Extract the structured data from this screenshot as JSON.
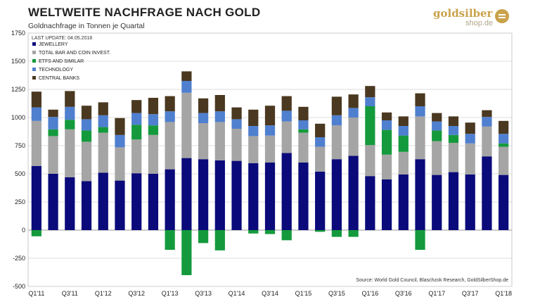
{
  "title": "WELTWEITE NACHFRAGE NACH GOLD",
  "subtitle": "Goldnachfrage in Tonnen je Quartal",
  "logo": {
    "main": "goldsilber",
    "sub": "shop.de"
  },
  "last_update": "LAST UPDATE: 04.05.2018",
  "source": "Source: World Gold Council, Blaschzok Research, GoldSilberShop.de",
  "colors": {
    "jewellery": "#0a0a7a",
    "bar_coin": "#a5a5a5",
    "etfs": "#149a3c",
    "technology": "#4f7fcf",
    "central_banks": "#4a3820"
  },
  "chart_data": {
    "type": "bar",
    "stacked": true,
    "categories": [
      "Q1'11",
      "Q2'11",
      "Q3'11",
      "Q4'11",
      "Q1'12",
      "Q2'12",
      "Q3'12",
      "Q4'12",
      "Q1'13",
      "Q2'13",
      "Q3'13",
      "Q4'13",
      "Q1'14",
      "Q2'14",
      "Q3'14",
      "Q4'14",
      "Q1'15",
      "Q2'15",
      "Q3'15",
      "Q4'15",
      "Q1'16",
      "Q2'16",
      "Q3'16",
      "Q4'16",
      "Q1'17",
      "Q2'17",
      "Q3'17",
      "Q4'17",
      "Q1'18"
    ],
    "tick_labels": [
      "Q1'11",
      "Q3'11",
      "Q1'12",
      "Q3'12",
      "Q1'13",
      "Q3'13",
      "Q1'14",
      "Q3'14",
      "Q1'15",
      "Q3'15",
      "Q1'16",
      "Q3'16",
      "Q1'17",
      "Q3'17",
      "Q1'18"
    ],
    "y_ticks": [
      "1750",
      "1500",
      "1250",
      "1000",
      "750",
      "500",
      "250",
      "0",
      "-250",
      "-500"
    ],
    "ylim": [
      -500,
      1750
    ],
    "grid": true,
    "legend_position": "top-left",
    "series": [
      {
        "name": "JEWELLERY",
        "color_key": "jewellery",
        "values": [
          570,
          500,
          470,
          435,
          510,
          440,
          505,
          500,
          540,
          640,
          630,
          620,
          615,
          595,
          600,
          685,
          600,
          520,
          630,
          660,
          480,
          450,
          495,
          630,
          490,
          515,
          495,
          655,
          490
        ]
      },
      {
        "name": "TOTAL BAR AND COIN INVEST.",
        "color_key": "bar_coin",
        "values": [
          400,
          335,
          425,
          350,
          355,
          295,
          300,
          345,
          420,
          580,
          320,
          340,
          285,
          240,
          240,
          280,
          265,
          220,
          300,
          340,
          275,
          220,
          200,
          380,
          300,
          260,
          275,
          265,
          250
        ]
      },
      {
        "name": "ETFS AND SIMILAR",
        "color_key": "etfs",
        "values": [
          -55,
          60,
          85,
          100,
          50,
          0,
          130,
          85,
          -175,
          -400,
          -115,
          -180,
          0,
          -30,
          -35,
          -90,
          30,
          -15,
          -60,
          -60,
          345,
          220,
          145,
          -175,
          95,
          70,
          0,
          0,
          30
        ]
      },
      {
        "name": "TECHNOLOGY",
        "color_key": "technology",
        "values": [
          120,
          110,
          115,
          100,
          105,
          110,
          105,
          100,
          95,
          105,
          90,
          95,
          85,
          90,
          90,
          95,
          80,
          85,
          90,
          85,
          80,
          85,
          85,
          90,
          80,
          80,
          85,
          85,
          85
        ]
      },
      {
        "name": "CENTRAL BANKS",
        "color_key": "central_banks",
        "values": [
          140,
          65,
          140,
          120,
          115,
          150,
          115,
          145,
          135,
          85,
          130,
          145,
          105,
          145,
          175,
          130,
          120,
          120,
          165,
          120,
          100,
          70,
          85,
          115,
          75,
          85,
          100,
          60,
          115
        ]
      }
    ]
  }
}
